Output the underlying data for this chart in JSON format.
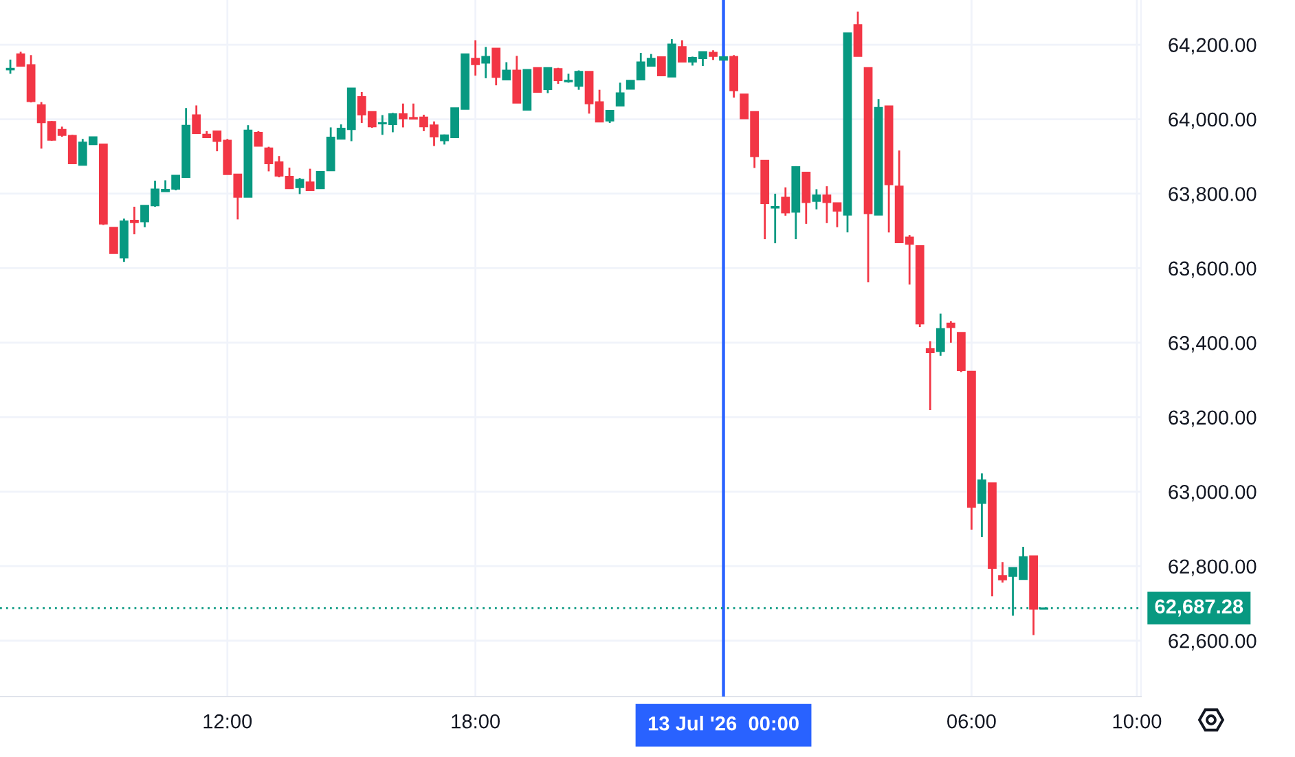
{
  "chart_data": {
    "type": "candlestick",
    "x": [
      "2026-07-12T06:45",
      "2026-07-12T07:00",
      "2026-07-12T07:15",
      "2026-07-12T07:30",
      "2026-07-12T07:45",
      "2026-07-12T08:00",
      "2026-07-12T08:15",
      "2026-07-12T08:30",
      "2026-07-12T08:45",
      "2026-07-12T09:00",
      "2026-07-12T09:15",
      "2026-07-12T09:30",
      "2026-07-12T09:45",
      "2026-07-12T10:00",
      "2026-07-12T10:15",
      "2026-07-12T10:30",
      "2026-07-12T10:45",
      "2026-07-12T11:00",
      "2026-07-12T11:15",
      "2026-07-12T11:30",
      "2026-07-12T11:45",
      "2026-07-12T12:00",
      "2026-07-12T12:15",
      "2026-07-12T12:30",
      "2026-07-12T12:45",
      "2026-07-12T13:00",
      "2026-07-12T13:15",
      "2026-07-12T13:30",
      "2026-07-12T13:45",
      "2026-07-12T14:00",
      "2026-07-12T14:15",
      "2026-07-12T14:30",
      "2026-07-12T14:45",
      "2026-07-12T15:00",
      "2026-07-12T15:15",
      "2026-07-12T15:30",
      "2026-07-12T15:45",
      "2026-07-12T16:00",
      "2026-07-12T16:15",
      "2026-07-12T16:30",
      "2026-07-12T16:45",
      "2026-07-12T17:00",
      "2026-07-12T17:15",
      "2026-07-12T17:30",
      "2026-07-12T17:45",
      "2026-07-12T18:00",
      "2026-07-12T18:15",
      "2026-07-12T18:30",
      "2026-07-12T18:45",
      "2026-07-12T19:00",
      "2026-07-12T19:15",
      "2026-07-12T19:30",
      "2026-07-12T19:45",
      "2026-07-12T20:00",
      "2026-07-12T20:15",
      "2026-07-12T20:30",
      "2026-07-12T20:45",
      "2026-07-12T21:00",
      "2026-07-12T21:15",
      "2026-07-12T21:30",
      "2026-07-12T21:45",
      "2026-07-12T22:00",
      "2026-07-12T22:15",
      "2026-07-12T22:30",
      "2026-07-12T22:45",
      "2026-07-12T23:00",
      "2026-07-12T23:15",
      "2026-07-12T23:30",
      "2026-07-12T23:45",
      "2026-07-13T00:00",
      "2026-07-13T00:15",
      "2026-07-13T00:30",
      "2026-07-13T00:45",
      "2026-07-13T01:00",
      "2026-07-13T01:15",
      "2026-07-13T01:30",
      "2026-07-13T01:45",
      "2026-07-13T02:00",
      "2026-07-13T02:15",
      "2026-07-13T02:30",
      "2026-07-13T02:45",
      "2026-07-13T03:00",
      "2026-07-13T03:15",
      "2026-07-13T03:30",
      "2026-07-13T03:45",
      "2026-07-13T04:00",
      "2026-07-13T04:15",
      "2026-07-13T04:30",
      "2026-07-13T04:45",
      "2026-07-13T05:00",
      "2026-07-13T05:15",
      "2026-07-13T05:30",
      "2026-07-13T05:45",
      "2026-07-13T06:00",
      "2026-07-13T06:15",
      "2026-07-13T06:30",
      "2026-07-13T06:45",
      "2026-07-13T07:00",
      "2026-07-13T07:15",
      "2026-07-13T07:30",
      "2026-07-13T07:45"
    ],
    "ohlc": [
      [
        64133,
        64160,
        64122,
        64136
      ],
      [
        64175,
        64181,
        64143,
        64143
      ],
      [
        64146,
        64172,
        64045,
        64048
      ],
      [
        64038,
        64046,
        63921,
        63991
      ],
      [
        63993,
        63995,
        63942,
        63944
      ],
      [
        63972,
        63980,
        63953,
        63957
      ],
      [
        63956,
        63958,
        63881,
        63881
      ],
      [
        63877,
        63947,
        63877,
        63938
      ],
      [
        63932,
        63952,
        63932,
        63952
      ],
      [
        63933,
        63933,
        63716,
        63719
      ],
      [
        63709,
        63709,
        63640,
        63640
      ],
      [
        63628,
        63733,
        63617,
        63726
      ],
      [
        63728,
        63765,
        63691,
        63723
      ],
      [
        63725,
        63768,
        63710,
        63768
      ],
      [
        63768,
        63835,
        63765,
        63812
      ],
      [
        63806,
        63836,
        63806,
        63811
      ],
      [
        63813,
        63849,
        63809,
        63849
      ],
      [
        63844,
        64030,
        63844,
        63983
      ],
      [
        64011,
        64037,
        63962,
        63962
      ],
      [
        63959,
        63968,
        63951,
        63951
      ],
      [
        63968,
        63968,
        63914,
        63941
      ],
      [
        63943,
        63947,
        63852,
        63852
      ],
      [
        63852,
        63852,
        63731,
        63791
      ],
      [
        63791,
        63984,
        63791,
        63970
      ],
      [
        63964,
        63968,
        63928,
        63928
      ],
      [
        63922,
        63926,
        63860,
        63881
      ],
      [
        63885,
        63901,
        63844,
        63848
      ],
      [
        63846,
        63870,
        63814,
        63814
      ],
      [
        63817,
        63842,
        63799,
        63838
      ],
      [
        63831,
        63867,
        63809,
        63809
      ],
      [
        63814,
        63859,
        63814,
        63859
      ],
      [
        63862,
        63978,
        63862,
        63951
      ],
      [
        63947,
        63986,
        63947,
        63975
      ],
      [
        63973,
        64083,
        63941,
        64083
      ],
      [
        64060,
        64073,
        63990,
        64012
      ],
      [
        64020,
        64020,
        63977,
        63980
      ],
      [
        63988,
        64011,
        63958,
        63990
      ],
      [
        63986,
        64017,
        63965,
        64014
      ],
      [
        64014,
        64042,
        63978,
        64002
      ],
      [
        64004,
        64042,
        64001,
        64001
      ],
      [
        64005,
        64012,
        63968,
        63980
      ],
      [
        63984,
        63994,
        63928,
        63953
      ],
      [
        63943,
        63959,
        63932,
        63957
      ],
      [
        63951,
        64030,
        63951,
        64030
      ],
      [
        64027,
        64175,
        64027,
        64175
      ],
      [
        64163,
        64212,
        64117,
        64147
      ],
      [
        64151,
        64194,
        64110,
        64168
      ],
      [
        64190,
        64190,
        64091,
        64113
      ],
      [
        64106,
        64153,
        64106,
        64131
      ],
      [
        64131,
        64170,
        64044,
        64044
      ],
      [
        64025,
        64133,
        64025,
        64133
      ],
      [
        64138,
        64138,
        64073,
        64073
      ],
      [
        64080,
        64138,
        64070,
        64138
      ],
      [
        64135,
        64138,
        64095,
        64104
      ],
      [
        64101,
        64122,
        64098,
        64104
      ],
      [
        64089,
        64131,
        64079,
        64128
      ],
      [
        64128,
        64128,
        64015,
        64042
      ],
      [
        64046,
        64079,
        63993,
        63993
      ],
      [
        63996,
        64023,
        63990,
        64023
      ],
      [
        64036,
        64098,
        64036,
        64070
      ],
      [
        64081,
        64104,
        64081,
        64104
      ],
      [
        64106,
        64178,
        64106,
        64153
      ],
      [
        64143,
        64175,
        64143,
        64163
      ],
      [
        64167,
        64167,
        64117,
        64117
      ],
      [
        64114,
        64215,
        64114,
        64201
      ],
      [
        64194,
        64212,
        64154,
        64154
      ],
      [
        64154,
        64168,
        64144,
        64165
      ],
      [
        64163,
        64181,
        64143,
        64181
      ],
      [
        64179,
        64185,
        64159,
        64169
      ],
      [
        64159,
        64167,
        64159,
        64167
      ],
      [
        64168,
        64172,
        64058,
        64077
      ],
      [
        64067,
        64067,
        64002,
        64002
      ],
      [
        64020,
        64020,
        63869,
        63900
      ],
      [
        63889,
        63889,
        63678,
        63774
      ],
      [
        63762,
        63800,
        63667,
        63765
      ],
      [
        63790,
        63817,
        63741,
        63749
      ],
      [
        63751,
        63874,
        63678,
        63872
      ],
      [
        63857,
        63857,
        63719,
        63777
      ],
      [
        63780,
        63812,
        63758,
        63796
      ],
      [
        63796,
        63820,
        63721,
        63777
      ],
      [
        63775,
        63775,
        63710,
        63754
      ],
      [
        63743,
        64231,
        63696,
        64231
      ],
      [
        64253,
        64289,
        64169,
        64169
      ],
      [
        64138,
        64138,
        63562,
        63747
      ],
      [
        63743,
        64054,
        63743,
        64031
      ],
      [
        64035,
        64035,
        63696,
        63825
      ],
      [
        63820,
        63916,
        63669,
        63669
      ],
      [
        63683,
        63689,
        63556,
        63665
      ],
      [
        63660,
        63660,
        63442,
        63451
      ],
      [
        63383,
        63404,
        63219,
        63374
      ],
      [
        63377,
        63478,
        63365,
        63437
      ],
      [
        63452,
        63458,
        63400,
        63441
      ],
      [
        63427,
        63427,
        63321,
        63326
      ],
      [
        63323,
        63323,
        62898,
        62959
      ],
      [
        62969,
        63049,
        62878,
        63031
      ],
      [
        63023,
        63023,
        62719,
        62795
      ],
      [
        62774,
        62811,
        62756,
        62764
      ],
      [
        62773,
        62796,
        62667,
        62796
      ],
      [
        62765,
        62852,
        62765,
        62825
      ],
      [
        62827,
        62827,
        62615,
        62685
      ],
      [
        62685,
        62688,
        62685,
        62687.28
      ]
    ],
    "colors": [
      "#089981",
      "#f23645",
      "#f23645",
      "#f23645",
      "#f23645",
      "#f23645",
      "#f23645",
      "#089981",
      "#089981",
      "#f23645",
      "#f23645",
      "#089981",
      "#f23645",
      "#089981",
      "#089981",
      "#089981",
      "#089981",
      "#089981",
      "#f23645",
      "#f23645",
      "#f23645",
      "#f23645",
      "#f23645",
      "#089981",
      "#f23645",
      "#f23645",
      "#f23645",
      "#f23645",
      "#089981",
      "#f23645",
      "#089981",
      "#089981",
      "#089981",
      "#089981",
      "#f23645",
      "#f23645",
      "#089981",
      "#089981",
      "#f23645",
      "#f23645",
      "#f23645",
      "#f23645",
      "#089981",
      "#089981",
      "#089981",
      "#f23645",
      "#089981",
      "#f23645",
      "#089981",
      "#f23645",
      "#089981",
      "#f23645",
      "#089981",
      "#f23645",
      "#089981",
      "#089981",
      "#f23645",
      "#f23645",
      "#089981",
      "#089981",
      "#089981",
      "#089981",
      "#089981",
      "#f23645",
      "#089981",
      "#f23645",
      "#089981",
      "#089981",
      "#f23645",
      "#089981",
      "#f23645",
      "#f23645",
      "#f23645",
      "#f23645",
      "#089981",
      "#f23645",
      "#089981",
      "#f23645",
      "#089981",
      "#f23645",
      "#f23645",
      "#089981",
      "#f23645",
      "#f23645",
      "#089981",
      "#f23645",
      "#f23645",
      "#f23645",
      "#f23645",
      "#f23645",
      "#089981",
      "#f23645",
      "#f23645",
      "#f23645",
      "#089981",
      "#f23645",
      "#f23645",
      "#089981",
      "#089981",
      "#f23645",
      "#089981"
    ],
    "xlim": [
      "2026-07-12T06:30",
      "2026-07-13T10:06"
    ],
    "ylim": [
      62450,
      64320
    ],
    "xticks": [
      {
        "value": "2026-07-12T12:00",
        "label": "12:00"
      },
      {
        "value": "2026-07-12T18:00",
        "label": "18:00"
      },
      {
        "value": "2026-07-13T06:00",
        "label": "06:00"
      },
      {
        "value": "2026-07-13T10:00",
        "label": "10:00"
      }
    ],
    "yticks": [
      {
        "value": 62600,
        "label": "62,600.00"
      },
      {
        "value": 62800,
        "label": "62,800.00"
      },
      {
        "value": 63000,
        "label": "63,000.00"
      },
      {
        "value": 63200,
        "label": "63,200.00"
      },
      {
        "value": 63400,
        "label": "63,400.00"
      },
      {
        "value": 63600,
        "label": "63,600.00"
      },
      {
        "value": 63800,
        "label": "63,800.00"
      },
      {
        "value": 64000,
        "label": "64,000.00"
      },
      {
        "value": 64200,
        "label": "64,200.00"
      }
    ],
    "grid": true,
    "ref_lines": [
      {
        "axis": "x",
        "value": "2026-07-13T00:00",
        "label": "13 Jul '26  00:00",
        "color": "#2962ff",
        "line_style": "solid"
      },
      {
        "axis": "y",
        "value": 62687.28,
        "label": "62,687.28",
        "color": "#089981",
        "line_style": "dotted"
      }
    ]
  }
}
